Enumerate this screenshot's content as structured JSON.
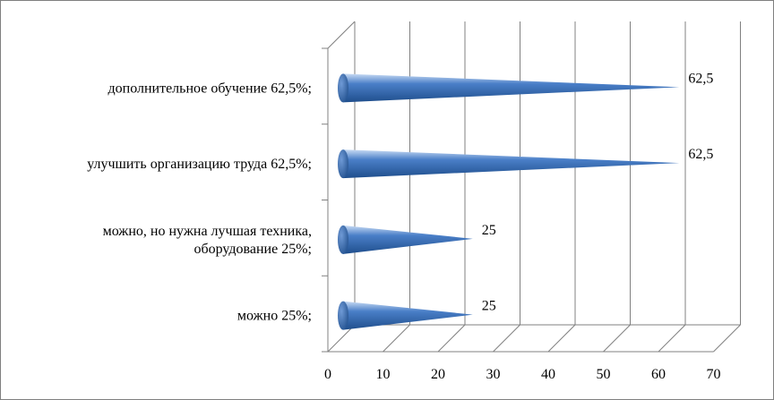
{
  "chart_data": {
    "type": "bar",
    "orientation": "horizontal",
    "bar_shape": "cone",
    "categories": [
      [
        "можно 25%;"
      ],
      [
        "можно, но нужна лучшая техника,",
        "оборудование 25%;"
      ],
      [
        "улучшить организацию труда 62,5%;"
      ],
      [
        "дополнительное обучение 62,5%;"
      ]
    ],
    "values": [
      25,
      25,
      62.5,
      62.5
    ],
    "data_labels": [
      "25",
      "25",
      "62,5",
      "62,5"
    ],
    "xlim": [
      0,
      70
    ],
    "x_ticks": [
      "0",
      "10",
      "20",
      "30",
      "40",
      "50",
      "60",
      "70"
    ],
    "grid": true,
    "legend": "none",
    "colors": {
      "bar_dark": "#1f4e8c",
      "bar_mid": "#4a7fc8",
      "bar_light": "#c9dcf4",
      "grid": "#808080"
    }
  }
}
